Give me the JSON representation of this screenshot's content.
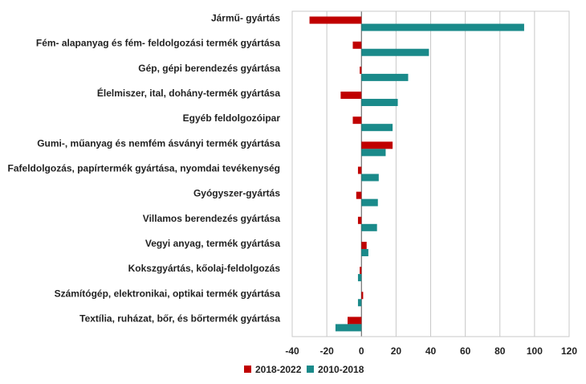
{
  "chart_data": {
    "type": "bar",
    "orientation": "horizontal",
    "categories": [
      "Jármű- gyártás",
      "Fém- alapanyag és fém- feldolgozási termék gyártása",
      "Gép, gépi berendezés gyártása",
      "Élelmiszer, ital, dohány-termék gyártása",
      "Egyéb feldolgozóipar",
      "Gumi-, műanyag és nemfém ásványi termék gyártása",
      "Fafeldolgozás, papírtermék gyártása, nyomdai tevékenység",
      "Gyógyszer-gyártás",
      "Villamos berendezés gyártása",
      "Vegyi anyag, termék gyártása",
      "Kokszgyártás, kőolaj-feldolgozás",
      "Számítógép, elektronikai, optikai termék gyártása",
      "Textília, ruházat, bőr, és bőrtermék gyártása"
    ],
    "series": [
      {
        "name": "2018-2022",
        "color": "#c00000",
        "values": [
          -30,
          -5,
          -1,
          -12,
          -5,
          18,
          -2,
          -3,
          -2,
          3,
          -1,
          1,
          -8
        ]
      },
      {
        "name": "2010-2018",
        "color": "#1a8a8a",
        "values": [
          94,
          39,
          27,
          21,
          18,
          14,
          10,
          9.5,
          9,
          4,
          -2,
          -2,
          -15
        ]
      }
    ],
    "xlim": [
      -40,
      120
    ],
    "xticks": [
      "-40",
      "-20",
      "0",
      "20",
      "40",
      "60",
      "80",
      "100",
      "120"
    ],
    "xtick_values": [
      -40,
      -20,
      0,
      20,
      40,
      60,
      80,
      100,
      120
    ],
    "grid": "vertical",
    "legend_position": "bottom"
  }
}
